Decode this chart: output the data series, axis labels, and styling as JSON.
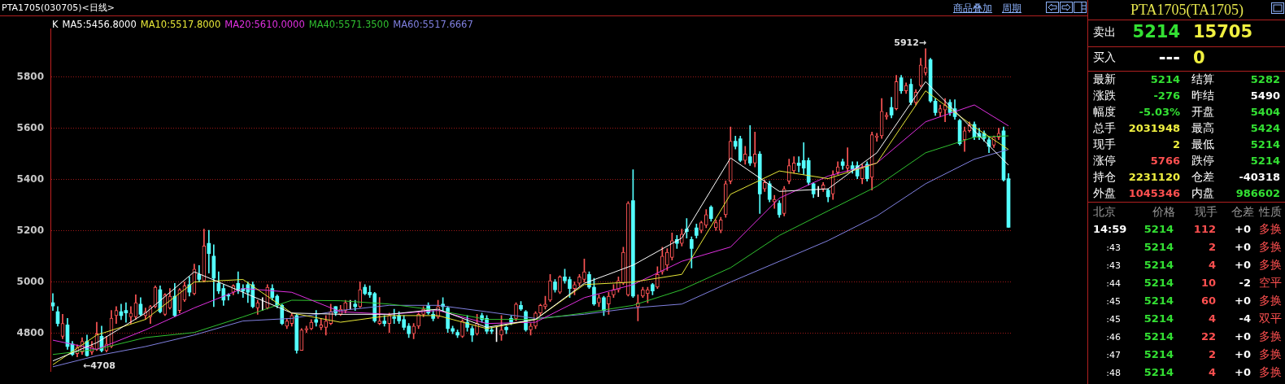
{
  "chart_data": [
    {
      "type": "candlestick",
      "title": "PTA1705(030705)<日线>",
      "legend_title": "K",
      "legend": "top left",
      "grid": "y",
      "tick_labels": "y",
      "marker": "none",
      "categories": [
        null,
        null,
        null,
        null,
        null,
        null,
        null,
        null,
        null,
        null,
        null,
        null,
        null,
        null,
        null,
        null,
        null,
        null,
        null,
        null,
        null,
        null,
        null,
        null,
        null,
        null,
        null,
        null,
        null,
        null,
        null,
        null,
        null,
        null,
        null,
        null,
        null,
        null,
        null,
        null,
        null,
        null,
        null,
        null,
        null,
        null,
        null,
        null,
        null,
        null,
        null,
        null,
        null,
        null,
        null,
        null,
        null,
        null,
        null,
        null,
        null,
        null,
        null,
        null,
        null,
        null,
        null,
        null,
        null,
        null,
        null,
        null,
        null,
        null,
        null,
        null,
        null,
        null,
        null,
        null,
        null,
        null,
        null,
        null,
        null,
        null,
        null,
        null,
        null,
        null,
        null,
        null,
        null,
        null,
        null,
        null,
        null,
        null,
        null,
        null,
        null,
        null,
        null,
        null,
        null,
        null,
        null,
        null,
        null,
        null,
        null,
        null,
        null,
        null,
        null,
        null,
        null,
        null,
        null,
        null,
        null,
        null,
        null,
        null,
        null,
        null,
        null,
        null,
        null,
        null,
        null,
        null,
        null,
        null,
        null,
        null,
        null,
        null,
        null,
        null,
        null,
        null,
        null,
        null,
        null,
        null,
        null,
        null,
        null,
        null,
        null,
        null,
        null,
        null,
        null,
        null,
        null,
        null,
        null,
        null,
        null,
        null,
        null,
        null,
        null,
        null,
        null,
        null,
        null,
        null,
        null,
        null,
        null,
        null,
        null,
        null,
        null,
        null,
        null,
        null,
        null,
        null,
        null,
        null,
        null,
        null,
        null,
        null,
        null,
        null,
        null,
        null,
        null,
        null,
        null,
        null,
        null
      ],
      "ylim": [
        4650,
        5990
      ],
      "yticks": [
        4800,
        5000,
        5200,
        5400,
        5600,
        5800
      ],
      "ohlc": [
        [
          4919,
          4955,
          4889,
          4906
        ],
        [
          4884,
          4904,
          4828,
          4838
        ],
        [
          4788,
          4874,
          4778,
          4838
        ],
        [
          4833,
          4858,
          4737,
          4748
        ],
        [
          4758,
          4768,
          4712,
          4717
        ],
        [
          4720,
          4755,
          4708,
          4745
        ],
        [
          4727,
          4783,
          4717,
          4768
        ],
        [
          4768,
          4793,
          4710,
          4712
        ],
        [
          4727,
          4768,
          4717,
          4748
        ],
        [
          4737,
          4843,
          4732,
          4798
        ],
        [
          4788,
          4828,
          4727,
          4732
        ],
        [
          4732,
          4788,
          4727,
          4758
        ],
        [
          4748,
          4889,
          4743,
          4859
        ],
        [
          4869,
          4904,
          4838,
          4889
        ],
        [
          4884,
          4914,
          4853,
          4869
        ],
        [
          4889,
          4919,
          4843,
          4879
        ],
        [
          4864,
          4904,
          4838,
          4879
        ],
        [
          4864,
          4950,
          4854,
          4919
        ],
        [
          4914,
          4939,
          4869,
          4874
        ],
        [
          4869,
          4899,
          4854,
          4884
        ],
        [
          4864,
          4909,
          4838,
          4904
        ],
        [
          4904,
          4985,
          4899,
          4980
        ],
        [
          4970,
          4985,
          4879,
          4884
        ],
        [
          4874,
          4955,
          4869,
          4950
        ],
        [
          4899,
          4975,
          4894,
          4945
        ],
        [
          4945,
          4995,
          4864,
          4869
        ],
        [
          4889,
          4975,
          4879,
          4970
        ],
        [
          4929,
          5000,
          4924,
          4985
        ],
        [
          4990,
          5020,
          4945,
          4960
        ],
        [
          4955,
          5070,
          4950,
          5050
        ],
        [
          5030,
          5065,
          5000,
          5010
        ],
        [
          5005,
          5207,
          5000,
          5141
        ],
        [
          5151,
          5202,
          5035,
          5111
        ],
        [
          5101,
          5146,
          4904,
          5015
        ],
        [
          4995,
          5040,
          4955,
          4965
        ],
        [
          4975,
          4990,
          4909,
          4929
        ],
        [
          4950,
          4955,
          4929,
          4945
        ],
        [
          4960,
          4990,
          4950,
          4985
        ],
        [
          4995,
          5040,
          4955,
          4970
        ],
        [
          4975,
          4990,
          4940,
          4965
        ],
        [
          4990,
          5000,
          4920,
          4960
        ],
        [
          4990,
          5000,
          4899,
          4904
        ],
        [
          4899,
          4929,
          4874,
          4919
        ],
        [
          4919,
          4939,
          4889,
          4919
        ],
        [
          4899,
          4990,
          4894,
          4980
        ],
        [
          4975,
          4990,
          4929,
          4940
        ],
        [
          4945,
          4950,
          4899,
          4909
        ],
        [
          4909,
          4914,
          4833,
          4838
        ],
        [
          4828,
          4858,
          4818,
          4848
        ],
        [
          4838,
          4879,
          4828,
          4869
        ],
        [
          4869,
          4874,
          4722,
          4733
        ],
        [
          4733,
          4818,
          4733,
          4813
        ],
        [
          4813,
          4828,
          4803,
          4818
        ],
        [
          4818,
          4853,
          4813,
          4843
        ],
        [
          4853,
          4889,
          4828,
          4843
        ],
        [
          4823,
          4858,
          4813,
          4833
        ],
        [
          4823,
          4869,
          4793,
          4848
        ],
        [
          4838,
          4914,
          4833,
          4884
        ],
        [
          4904,
          4904,
          4869,
          4879
        ],
        [
          4874,
          4909,
          4869,
          4894
        ],
        [
          4889,
          4929,
          4879,
          4919
        ],
        [
          4909,
          4929,
          4894,
          4909
        ],
        [
          4914,
          4929,
          4889,
          4904
        ],
        [
          4904,
          5000,
          4899,
          4970
        ],
        [
          4980,
          4990,
          4950,
          4955
        ],
        [
          4960,
          4985,
          4940,
          4950
        ],
        [
          4955,
          4960,
          4843,
          4848
        ],
        [
          4838,
          4940,
          4833,
          4848
        ],
        [
          4848,
          4869,
          4828,
          4838
        ],
        [
          4838,
          4879,
          4803,
          4869
        ],
        [
          4864,
          4894,
          4838,
          4858
        ],
        [
          4869,
          4884,
          4838,
          4848
        ],
        [
          4853,
          4869,
          4813,
          4823
        ],
        [
          4828,
          4838,
          4783,
          4798
        ],
        [
          4798,
          4838,
          4778,
          4828
        ],
        [
          4828,
          4879,
          4818,
          4874
        ],
        [
          4874,
          4904,
          4864,
          4894
        ],
        [
          4909,
          4919,
          4874,
          4879
        ],
        [
          4874,
          4889,
          4848,
          4858
        ],
        [
          4864,
          4929,
          4858,
          4904
        ],
        [
          4914,
          4939,
          4889,
          4904
        ],
        [
          4899,
          4904,
          4803,
          4818
        ],
        [
          4818,
          4828,
          4798,
          4808
        ],
        [
          4803,
          4813,
          4783,
          4793
        ],
        [
          4788,
          4853,
          4783,
          4848
        ],
        [
          4843,
          4869,
          4808,
          4823
        ],
        [
          4818,
          4828,
          4767,
          4793
        ],
        [
          4798,
          4874,
          4793,
          4838
        ],
        [
          4869,
          4879,
          4843,
          4853
        ],
        [
          4858,
          4869,
          4798,
          4808
        ],
        [
          4813,
          4823,
          4798,
          4808
        ],
        [
          4803,
          4823,
          4767,
          4803
        ],
        [
          4793,
          4869,
          4772,
          4813
        ],
        [
          4823,
          4828,
          4798,
          4813
        ],
        [
          4858,
          4869,
          4833,
          4843
        ],
        [
          4858,
          4919,
          4848,
          4914
        ],
        [
          4909,
          4924,
          4889,
          4894
        ],
        [
          4884,
          4889,
          4808,
          4813
        ],
        [
          4813,
          4838,
          4793,
          4828
        ],
        [
          4828,
          4884,
          4818,
          4879
        ],
        [
          4879,
          4914,
          4869,
          4909
        ],
        [
          4904,
          4945,
          4894,
          4914
        ],
        [
          4929,
          5030,
          4924,
          5005
        ],
        [
          5000,
          5010,
          4960,
          4970
        ],
        [
          4960,
          5025,
          4955,
          5020
        ],
        [
          5020,
          5050,
          4995,
          5005
        ],
        [
          5010,
          5020,
          4940,
          4975
        ],
        [
          4975,
          5000,
          4950,
          4990
        ],
        [
          4995,
          5030,
          4985,
          5020
        ],
        [
          5010,
          5090,
          5000,
          5040
        ],
        [
          5030,
          5040,
          4975,
          4980
        ],
        [
          4980,
          5015,
          4909,
          4914
        ],
        [
          4919,
          4950,
          4904,
          4939
        ],
        [
          4939,
          4945,
          4869,
          4889
        ],
        [
          4914,
          4960,
          4874,
          4945
        ],
        [
          4950,
          4990,
          4940,
          4970
        ],
        [
          4970,
          5020,
          4960,
          5005
        ],
        [
          4995,
          5136,
          4990,
          5116
        ],
        [
          4950,
          5314,
          4945,
          5308
        ],
        [
          5318,
          5439,
          4940,
          4945
        ],
        [
          4904,
          4950,
          4848,
          4919
        ],
        [
          4945,
          4980,
          4940,
          4970
        ],
        [
          4955,
          4980,
          4919,
          4970
        ],
        [
          4990,
          4995,
          4950,
          4965
        ],
        [
          4980,
          5060,
          4975,
          5030
        ],
        [
          5040,
          5136,
          5030,
          5101
        ],
        [
          5066,
          5131,
          5045,
          5116
        ],
        [
          5096,
          5192,
          5086,
          5162
        ],
        [
          5166,
          5182,
          5131,
          5151
        ],
        [
          5151,
          5207,
          5141,
          5187
        ],
        [
          5207,
          5248,
          5172,
          5197
        ],
        [
          5166,
          5177,
          5055,
          5131
        ],
        [
          5212,
          5227,
          5172,
          5182
        ],
        [
          5202,
          5238,
          5192,
          5232
        ],
        [
          5222,
          5283,
          5212,
          5263
        ],
        [
          5293,
          5298,
          5238,
          5248
        ],
        [
          5212,
          5243,
          5202,
          5232
        ],
        [
          5202,
          5253,
          5192,
          5243
        ],
        [
          5263,
          5395,
          5253,
          5384
        ],
        [
          5394,
          5606,
          5384,
          5550
        ],
        [
          5550,
          5570,
          5520,
          5530
        ],
        [
          5560,
          5570,
          5470,
          5475
        ],
        [
          5475,
          5530,
          5460,
          5500
        ],
        [
          5490,
          5611,
          5455,
          5465
        ],
        [
          5465,
          5586,
          5450,
          5500
        ],
        [
          5500,
          5510,
          5268,
          5344
        ],
        [
          5364,
          5399,
          5354,
          5389
        ],
        [
          5384,
          5394,
          5313,
          5323
        ],
        [
          5313,
          5339,
          5288,
          5323
        ],
        [
          5308,
          5318,
          5253,
          5263
        ],
        [
          5268,
          5374,
          5258,
          5364
        ],
        [
          5394,
          5480,
          5384,
          5455
        ],
        [
          5435,
          5490,
          5425,
          5465
        ],
        [
          5465,
          5490,
          5430,
          5455
        ],
        [
          5475,
          5545,
          5420,
          5445
        ],
        [
          5475,
          5485,
          5379,
          5389
        ],
        [
          5384,
          5389,
          5330,
          5344
        ],
        [
          5354,
          5374,
          5334,
          5354
        ],
        [
          5364,
          5389,
          5354,
          5379
        ],
        [
          5359,
          5364,
          5313,
          5333
        ],
        [
          5344,
          5435,
          5323,
          5419
        ],
        [
          5429,
          5470,
          5420,
          5450
        ],
        [
          5470,
          5480,
          5440,
          5455
        ],
        [
          5445,
          5525,
          5430,
          5455
        ],
        [
          5455,
          5470,
          5425,
          5440
        ],
        [
          5455,
          5470,
          5404,
          5414
        ],
        [
          5404,
          5460,
          5384,
          5445
        ],
        [
          5460,
          5470,
          5394,
          5404
        ],
        [
          5409,
          5586,
          5359,
          5576
        ],
        [
          5566,
          5581,
          5550,
          5571
        ],
        [
          5571,
          5717,
          5561,
          5667
        ],
        [
          5646,
          5662,
          5636,
          5652
        ],
        [
          5682,
          5722,
          5641,
          5652
        ],
        [
          5677,
          5808,
          5672,
          5783
        ],
        [
          5798,
          5808,
          5737,
          5747
        ],
        [
          5747,
          5778,
          5737,
          5768
        ],
        [
          5773,
          5793,
          5692,
          5702
        ],
        [
          5702,
          5752,
          5692,
          5742
        ],
        [
          5768,
          5874,
          5762,
          5848
        ],
        [
          5818,
          5912,
          5808,
          5838
        ],
        [
          5869,
          5874,
          5702,
          5707
        ],
        [
          5707,
          5717,
          5651,
          5662
        ],
        [
          5662,
          5692,
          5646,
          5677
        ],
        [
          5672,
          5717,
          5626,
          5692
        ],
        [
          5702,
          5712,
          5651,
          5662
        ],
        [
          5677,
          5712,
          5636,
          5646
        ],
        [
          5631,
          5636,
          5535,
          5540
        ],
        [
          5556,
          5606,
          5510,
          5591
        ],
        [
          5591,
          5626,
          5586,
          5611
        ],
        [
          5616,
          5626,
          5556,
          5566
        ],
        [
          5581,
          5601,
          5556,
          5566
        ],
        [
          5581,
          5591,
          5550,
          5561
        ],
        [
          5556,
          5566,
          5505,
          5530
        ],
        [
          5535,
          5571,
          5525,
          5566
        ],
        [
          5566,
          5601,
          5556,
          5581
        ],
        [
          5591,
          5606,
          5394,
          5399
        ],
        [
          5404,
          5424,
          5214,
          5214
        ]
      ],
      "series": [
        {
          "type": "line",
          "name": "MA5:5456.8000",
          "color": "#ffffff",
          "values": [
            4692,
            null,
            null,
            null,
            null,
            null,
            null,
            null,
            null,
            4763,
            null,
            null,
            null,
            null,
            null,
            null,
            null,
            null,
            null,
            4879,
            null,
            null,
            null,
            null,
            null,
            null,
            null,
            null,
            null,
            5040,
            null,
            null,
            null,
            null,
            null,
            null,
            null,
            null,
            null,
            4960,
            null,
            null,
            null,
            null,
            null,
            null,
            null,
            null,
            null,
            4879,
            null,
            null,
            null,
            null,
            null,
            null,
            null,
            null,
            null,
            4874,
            null,
            null,
            null,
            null,
            null,
            null,
            null,
            null,
            null,
            4874,
            null,
            null,
            null,
            null,
            null,
            null,
            null,
            null,
            null,
            4894,
            null,
            null,
            null,
            null,
            null,
            null,
            null,
            null,
            null,
            4823,
            null,
            null,
            null,
            null,
            null,
            null,
            null,
            null,
            null,
            4854,
            null,
            null,
            null,
            null,
            null,
            null,
            null,
            null,
            null,
            4995,
            null,
            null,
            null,
            null,
            null,
            null,
            null,
            null,
            null,
            5066,
            null,
            null,
            null,
            null,
            null,
            null,
            null,
            null,
            null,
            5172,
            null,
            null,
            null,
            null,
            null,
            null,
            null,
            null,
            null,
            5485,
            null,
            null,
            null,
            null,
            null,
            null,
            null,
            null,
            null,
            5354,
            null,
            null,
            null,
            null,
            null,
            null,
            null,
            null,
            null,
            5364,
            null,
            null,
            null,
            null,
            null,
            null,
            null,
            null,
            null,
            5505,
            null,
            null,
            null,
            null,
            null,
            null,
            null,
            null,
            null,
            5783,
            null,
            null,
            null,
            null,
            null,
            null,
            null,
            null,
            null,
            5591,
            null,
            null,
            null,
            null,
            null,
            null,
            5457
          ]
        },
        {
          "type": "line",
          "name": "MA10:5517.8000",
          "color": "#e8e838",
          "values": [
            4677,
            null,
            null,
            null,
            null,
            null,
            null,
            null,
            null,
            4793,
            null,
            null,
            null,
            null,
            null,
            null,
            null,
            null,
            null,
            4854,
            null,
            null,
            null,
            null,
            null,
            null,
            null,
            null,
            null,
            5000,
            null,
            null,
            null,
            null,
            null,
            null,
            null,
            null,
            null,
            5010,
            null,
            null,
            null,
            null,
            null,
            null,
            null,
            null,
            null,
            4879,
            null,
            null,
            null,
            null,
            null,
            null,
            null,
            null,
            null,
            4843,
            null,
            null,
            null,
            null,
            null,
            null,
            null,
            null,
            null,
            4869,
            null,
            null,
            null,
            null,
            null,
            null,
            null,
            null,
            null,
            4869,
            null,
            null,
            null,
            null,
            null,
            null,
            null,
            null,
            null,
            4818,
            null,
            null,
            null,
            null,
            null,
            null,
            null,
            null,
            null,
            4854,
            null,
            null,
            null,
            null,
            null,
            null,
            null,
            null,
            null,
            4990,
            null,
            null,
            null,
            null,
            null,
            null,
            null,
            null,
            null,
            5000,
            null,
            null,
            null,
            null,
            null,
            null,
            null,
            null,
            null,
            5030,
            null,
            null,
            null,
            null,
            null,
            null,
            null,
            null,
            null,
            5343,
            null,
            null,
            null,
            null,
            null,
            null,
            null,
            null,
            null,
            5434,
            null,
            null,
            null,
            null,
            null,
            null,
            null,
            null,
            null,
            5404,
            null,
            null,
            null,
            null,
            null,
            null,
            null,
            null,
            null,
            5465,
            null,
            null,
            null,
            null,
            null,
            null,
            null,
            null,
            null,
            5747,
            null,
            null,
            null,
            null,
            null,
            null,
            null,
            null,
            null,
            5606,
            null,
            null,
            null,
            null,
            null,
            null,
            5518
          ]
        },
        {
          "type": "line",
          "name": "MA20:5610.0000",
          "color": "#e030e0",
          "values": [
            4773,
            null,
            null,
            null,
            null,
            null,
            null,
            null,
            null,
            4737,
            null,
            null,
            null,
            null,
            null,
            null,
            null,
            null,
            null,
            4813,
            null,
            null,
            null,
            null,
            null,
            null,
            null,
            null,
            null,
            4899,
            null,
            null,
            null,
            null,
            null,
            null,
            null,
            null,
            null,
            4975,
            null,
            null,
            null,
            null,
            null,
            null,
            null,
            null,
            null,
            4960,
            null,
            null,
            null,
            null,
            null,
            null,
            null,
            null,
            null,
            4884,
            null,
            null,
            null,
            null,
            null,
            null,
            null,
            null,
            null,
            4874,
            null,
            null,
            null,
            null,
            null,
            null,
            null,
            null,
            null,
            4889,
            null,
            null,
            null,
            null,
            null,
            null,
            null,
            null,
            null,
            4838,
            null,
            null,
            null,
            null,
            null,
            null,
            null,
            null,
            null,
            4843,
            null,
            null,
            null,
            null,
            null,
            null,
            null,
            null,
            null,
            4939,
            null,
            null,
            null,
            null,
            null,
            null,
            null,
            null,
            null,
            4990,
            null,
            null,
            null,
            null,
            null,
            null,
            null,
            null,
            null,
            5081,
            null,
            null,
            null,
            null,
            null,
            null,
            null,
            null,
            null,
            5137,
            null,
            null,
            null,
            null,
            null,
            null,
            null,
            null,
            null,
            5328,
            null,
            null,
            null,
            null,
            null,
            null,
            null,
            null,
            null,
            5414,
            null,
            null,
            null,
            null,
            null,
            null,
            null,
            null,
            null,
            5465,
            null,
            null,
            null,
            null,
            null,
            null,
            null,
            null,
            null,
            5626,
            null,
            null,
            null,
            null,
            null,
            null,
            null,
            null,
            null,
            5692,
            null,
            null,
            null,
            null,
            null,
            null,
            5610
          ]
        },
        {
          "type": "line",
          "name": "MA40:5571.3500",
          "color": "#30c030",
          "values": [
            4717,
            null,
            null,
            null,
            null,
            null,
            null,
            null,
            null,
            4737,
            null,
            null,
            null,
            null,
            null,
            null,
            null,
            null,
            null,
            4783,
            null,
            null,
            null,
            null,
            null,
            null,
            null,
            null,
            null,
            4803,
            null,
            null,
            null,
            null,
            null,
            null,
            null,
            null,
            null,
            4864,
            null,
            null,
            null,
            null,
            null,
            null,
            null,
            null,
            null,
            4929,
            null,
            null,
            null,
            null,
            null,
            null,
            null,
            null,
            null,
            4927,
            null,
            null,
            null,
            null,
            null,
            null,
            null,
            null,
            null,
            4914,
            null,
            null,
            null,
            null,
            null,
            null,
            null,
            null,
            null,
            4889,
            null,
            null,
            null,
            null,
            null,
            null,
            null,
            null,
            null,
            4854,
            null,
            null,
            null,
            null,
            null,
            null,
            null,
            null,
            null,
            4854,
            null,
            null,
            null,
            null,
            null,
            null,
            null,
            null,
            null,
            4879,
            null,
            null,
            null,
            null,
            null,
            null,
            null,
            null,
            null,
            4909,
            null,
            null,
            null,
            null,
            null,
            null,
            null,
            null,
            null,
            4970,
            null,
            null,
            null,
            null,
            null,
            null,
            null,
            null,
            null,
            5056,
            null,
            null,
            null,
            null,
            null,
            null,
            null,
            null,
            null,
            5182,
            null,
            null,
            null,
            null,
            null,
            null,
            null,
            null,
            null,
            5278,
            null,
            null,
            null,
            null,
            null,
            null,
            null,
            null,
            null,
            5374,
            null,
            null,
            null,
            null,
            null,
            null,
            null,
            null,
            null,
            5505,
            null,
            null,
            null,
            null,
            null,
            null,
            null,
            null,
            null,
            5566,
            null,
            null,
            null,
            null,
            null,
            null,
            5571
          ]
        },
        {
          "type": "line",
          "name": "MA60:5517.6667",
          "color": "#8080e0",
          "values": [
            4669,
            null,
            null,
            null,
            null,
            null,
            null,
            null,
            null,
            4712,
            null,
            null,
            null,
            null,
            null,
            null,
            null,
            null,
            null,
            4748,
            null,
            null,
            null,
            null,
            null,
            null,
            null,
            null,
            null,
            4793,
            null,
            null,
            null,
            null,
            null,
            null,
            null,
            null,
            null,
            4848,
            null,
            null,
            null,
            null,
            null,
            null,
            null,
            null,
            null,
            4858,
            null,
            null,
            null,
            null,
            null,
            null,
            null,
            null,
            null,
            4889,
            null,
            null,
            null,
            null,
            null,
            null,
            null,
            null,
            null,
            4909,
            null,
            null,
            null,
            null,
            null,
            null,
            null,
            null,
            null,
            4909,
            null,
            null,
            null,
            null,
            null,
            null,
            null,
            null,
            null,
            4884,
            null,
            null,
            null,
            null,
            null,
            null,
            null,
            null,
            null,
            4858,
            null,
            null,
            null,
            null,
            null,
            null,
            null,
            null,
            null,
            4874,
            null,
            null,
            null,
            null,
            null,
            null,
            null,
            null,
            null,
            4899,
            null,
            null,
            null,
            null,
            null,
            null,
            null,
            null,
            null,
            4914,
            null,
            null,
            null,
            null,
            null,
            null,
            null,
            null,
            null,
            5000,
            null,
            null,
            null,
            null,
            null,
            null,
            null,
            null,
            null,
            5081,
            null,
            null,
            null,
            null,
            null,
            null,
            null,
            null,
            null,
            5162,
            null,
            null,
            null,
            null,
            null,
            null,
            null,
            null,
            null,
            5258,
            null,
            null,
            null,
            null,
            null,
            null,
            null,
            null,
            null,
            5384,
            null,
            null,
            null,
            null,
            null,
            null,
            null,
            null,
            null,
            5480,
            null,
            null,
            null,
            null,
            null,
            null,
            5518
          ]
        }
      ],
      "annotations": [
        "5912→",
        "←4708",
        "商品叠加",
        "周期"
      ]
    },
    {
      "type": "other",
      "title": "PTA1705(TA1705)",
      "annotations": [
        "卖出",
        "5214",
        "15705",
        "买入",
        "---",
        "0",
        "最新",
        "5214",
        "结算",
        "5282",
        "涨跌",
        "-276",
        "昨结",
        "5490",
        "幅度",
        "-5.03%",
        "开盘",
        "5404",
        "总手",
        "2031948",
        "最高",
        "5424",
        "现手",
        "2",
        "最低",
        "5214",
        "涨停",
        "5766",
        "跌停",
        "5214",
        "持仓",
        "2231120",
        "仓差",
        "-40318",
        "外盘",
        "1045346",
        "内盘",
        "986602",
        "北京",
        "价格",
        "现手",
        "仓差",
        "性质",
        "14:59",
        "5214",
        "112",
        "+0",
        "多换",
        ":43",
        "5214",
        "2",
        "+0",
        "多换",
        ":43",
        "5214",
        "4",
        "+0",
        "多换",
        ":44",
        "5214",
        "10",
        "-2",
        "空平",
        ":45",
        "5214",
        "60",
        "+0",
        "多换",
        ":45",
        "5214",
        "4",
        "-4",
        "双平",
        ":46",
        "5214",
        "22",
        "+0",
        "多换",
        ":47",
        "5214",
        "2",
        "+0",
        "多换",
        ":48",
        "5214",
        "4",
        "+0",
        "多换"
      ]
    }
  ]
}
